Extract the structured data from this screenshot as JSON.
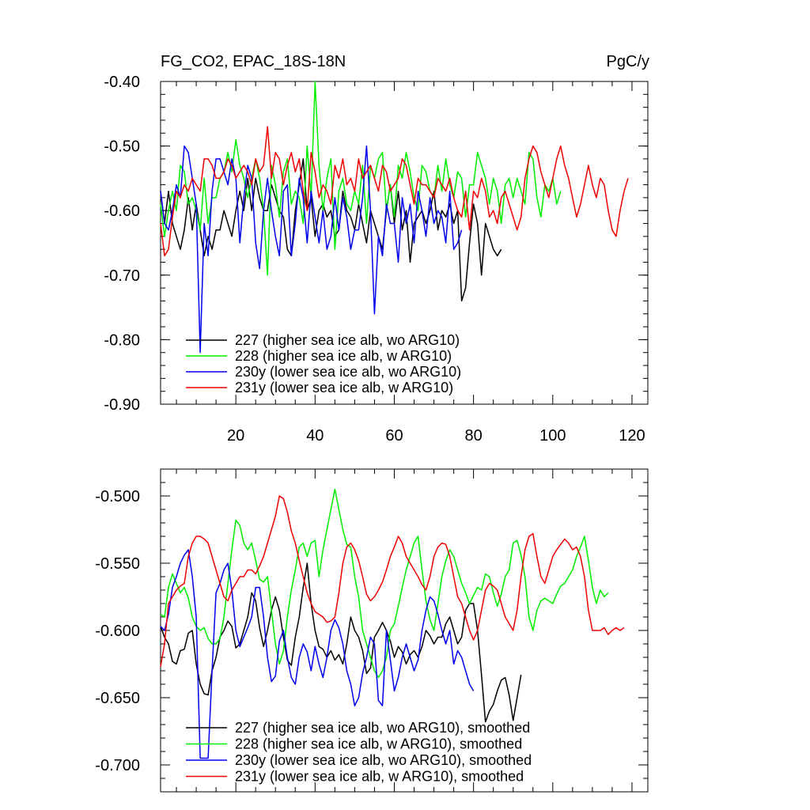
{
  "chart_data": [
    {
      "type": "line",
      "title_left": "FG_CO2, EPAC_18S-18N",
      "title_right": "PgC/y",
      "xlim": [
        1,
        124
      ],
      "ylim": [
        -0.9,
        -0.4
      ],
      "x_ticks": [
        20,
        40,
        60,
        80,
        100,
        120
      ],
      "y_ticks": [
        "-0.40",
        "-0.50",
        "-0.60",
        "-0.70",
        "-0.80",
        "-0.90"
      ],
      "y_tick_values": [
        -0.4,
        -0.5,
        -0.6,
        -0.7,
        -0.8,
        -0.9
      ],
      "grid": false,
      "legend_position": "bottom-left",
      "series": [
        {
          "name": "227 (higher sea ice alb, wo ARG10)",
          "color": "#000000",
          "values": [
            -0.57,
            -0.62,
            -0.57,
            -0.62,
            -0.64,
            -0.66,
            -0.63,
            -0.58,
            -0.63,
            -0.59,
            -0.63,
            -0.67,
            -0.64,
            -0.66,
            -0.63,
            -0.63,
            -0.6,
            -0.62,
            -0.64,
            -0.6,
            -0.57,
            -0.6,
            -0.55,
            -0.6,
            -0.55,
            -0.58,
            -0.6,
            -0.6,
            -0.56,
            -0.58,
            -0.6,
            -0.61,
            -0.66,
            -0.67,
            -0.6,
            -0.56,
            -0.52,
            -0.6,
            -0.58,
            -0.64,
            -0.6,
            -0.59,
            -0.61,
            -0.6,
            -0.64,
            -0.63,
            -0.57,
            -0.6,
            -0.61,
            -0.63,
            -0.59,
            -0.62,
            -0.65,
            -0.6,
            -0.62,
            -0.64,
            -0.66,
            -0.6,
            -0.56,
            -0.62,
            -0.57,
            -0.63,
            -0.6,
            -0.68,
            -0.62,
            -0.61,
            -0.6,
            -0.62,
            -0.6,
            -0.57,
            -0.63,
            -0.6,
            -0.61,
            -0.59,
            -0.62,
            -0.6,
            -0.74,
            -0.72,
            -0.65,
            -0.59,
            -0.62,
            -0.7,
            -0.62,
            -0.64,
            -0.66,
            -0.67,
            -0.66
          ]
        },
        {
          "name": "228 (higher sea ice alb, w ARG10)",
          "color": "#00ee00",
          "values": [
            -0.59,
            -0.64,
            -0.6,
            -0.57,
            -0.6,
            -0.53,
            -0.54,
            -0.59,
            -0.58,
            -0.6,
            -0.63,
            -0.55,
            -0.62,
            -0.58,
            -0.58,
            -0.55,
            -0.54,
            -0.51,
            -0.54,
            -0.49,
            -0.53,
            -0.55,
            -0.58,
            -0.55,
            -0.52,
            -0.55,
            -0.6,
            -0.7,
            -0.53,
            -0.56,
            -0.61,
            -0.54,
            -0.52,
            -0.59,
            -0.57,
            -0.58,
            -0.62,
            -0.5,
            -0.58,
            -0.4,
            -0.53,
            -0.6,
            -0.55,
            -0.52,
            -0.66,
            -0.57,
            -0.55,
            -0.59,
            -0.6,
            -0.57,
            -0.59,
            -0.53,
            -0.62,
            -0.53,
            -0.55,
            -0.52,
            -0.51,
            -0.6,
            -0.56,
            -0.61,
            -0.53,
            -0.55,
            -0.51,
            -0.54,
            -0.58,
            -0.6,
            -0.53,
            -0.54,
            -0.57,
            -0.58,
            -0.53,
            -0.57,
            -0.52,
            -0.56,
            -0.58,
            -0.54,
            -0.55,
            -0.61,
            -0.56,
            -0.56,
            -0.51,
            -0.53,
            -0.55,
            -0.59,
            -0.55,
            -0.57,
            -0.62,
            -0.56,
            -0.55,
            -0.58,
            -0.55,
            -0.57,
            -0.59,
            -0.51,
            -0.52,
            -0.58,
            -0.61,
            -0.56,
            -0.57,
            -0.55,
            -0.59,
            -0.57
          ]
        },
        {
          "name": "230y (lower sea ice alb, wo ARG10)",
          "color": "#0000ee",
          "values": [
            -0.57,
            -0.62,
            -0.63,
            -0.6,
            -0.56,
            -0.58,
            -0.5,
            -0.51,
            -0.55,
            -0.59,
            -0.82,
            -0.62,
            -0.67,
            -0.57,
            -0.52,
            -0.52,
            -0.54,
            -0.56,
            -0.52,
            -0.55,
            -0.65,
            -0.58,
            -0.53,
            -0.55,
            -0.65,
            -0.69,
            -0.6,
            -0.55,
            -0.6,
            -0.64,
            -0.67,
            -0.57,
            -0.56,
            -0.67,
            -0.62,
            -0.55,
            -0.58,
            -0.65,
            -0.57,
            -0.61,
            -0.65,
            -0.6,
            -0.66,
            -0.64,
            -0.58,
            -0.63,
            -0.58,
            -0.61,
            -0.66,
            -0.63,
            -0.63,
            -0.58,
            -0.5,
            -0.6,
            -0.76,
            -0.64,
            -0.67,
            -0.59,
            -0.62,
            -0.62,
            -0.68,
            -0.58,
            -0.62,
            -0.59,
            -0.65,
            -0.57,
            -0.6,
            -0.64,
            -0.58,
            -0.62,
            -0.6,
            -0.61,
            -0.65,
            -0.57,
            -0.66,
            -0.65,
            -0.63
          ]
        },
        {
          "name": "231y (lower sea ice alb, w ARG10)",
          "color": "#ee0000",
          "values": [
            -0.62,
            -0.67,
            -0.66,
            -0.61,
            -0.57,
            -0.58,
            -0.56,
            -0.57,
            -0.55,
            -0.56,
            -0.57,
            -0.52,
            -0.52,
            -0.53,
            -0.55,
            -0.55,
            -0.54,
            -0.52,
            -0.53,
            -0.55,
            -0.54,
            -0.53,
            -0.54,
            -0.56,
            -0.52,
            -0.54,
            -0.53,
            -0.47,
            -0.55,
            -0.51,
            -0.52,
            -0.56,
            -0.53,
            -0.51,
            -0.54,
            -0.52,
            -0.57,
            -0.6,
            -0.51,
            -0.54,
            -0.58,
            -0.56,
            -0.57,
            -0.59,
            -0.53,
            -0.55,
            -0.52,
            -0.56,
            -0.55,
            -0.57,
            -0.52,
            -0.55,
            -0.54,
            -0.53,
            -0.55,
            -0.57,
            -0.53,
            -0.54,
            -0.57,
            -0.56,
            -0.55,
            -0.52,
            -0.53,
            -0.56,
            -0.59,
            -0.55,
            -0.56,
            -0.56,
            -0.57,
            -0.58,
            -0.55,
            -0.56,
            -0.57,
            -0.55,
            -0.58,
            -0.6,
            -0.61,
            -0.57,
            -0.63,
            -0.57,
            -0.58,
            -0.55,
            -0.57,
            -0.61,
            -0.6,
            -0.62,
            -0.58,
            -0.57,
            -0.59,
            -0.61,
            -0.63,
            -0.61,
            -0.55,
            -0.52,
            -0.5,
            -0.51,
            -0.54,
            -0.56,
            -0.58,
            -0.55,
            -0.52,
            -0.5,
            -0.53,
            -0.55,
            -0.58,
            -0.61,
            -0.59,
            -0.56,
            -0.53,
            -0.56,
            -0.58,
            -0.55,
            -0.56,
            -0.6,
            -0.63,
            -0.64,
            -0.6,
            -0.57,
            -0.55
          ]
        }
      ]
    },
    {
      "type": "line",
      "xlim": [
        1,
        124
      ],
      "ylim": [
        -0.72,
        -0.48
      ],
      "y_ticks": [
        "-0.500",
        "-0.550",
        "-0.600",
        "-0.650",
        "-0.700"
      ],
      "y_tick_values": [
        -0.5,
        -0.55,
        -0.6,
        -0.65,
        -0.7
      ],
      "x_tick_values": [
        20,
        40,
        60,
        80,
        100,
        120
      ],
      "grid": false,
      "legend_position": "bottom-left",
      "series": [
        {
          "name": "227 (higher sea ice alb, wo ARG10), smoothed",
          "color": "#000000",
          "values": [
            -0.597,
            -0.605,
            -0.61,
            -0.623,
            -0.625,
            -0.615,
            -0.614,
            -0.602,
            -0.6,
            -0.625,
            -0.64,
            -0.647,
            -0.648,
            -0.63,
            -0.62,
            -0.605,
            -0.6,
            -0.593,
            -0.597,
            -0.613,
            -0.61,
            -0.6,
            -0.59,
            -0.572,
            -0.578,
            -0.598,
            -0.612,
            -0.6,
            -0.585,
            -0.575,
            -0.585,
            -0.605,
            -0.622,
            -0.626,
            -0.605,
            -0.59,
            -0.568,
            -0.55,
            -0.58,
            -0.6,
            -0.612,
            -0.614,
            -0.62,
            -0.615,
            -0.622,
            -0.618,
            -0.625,
            -0.61,
            -0.59,
            -0.6,
            -0.605,
            -0.615,
            -0.632,
            -0.628,
            -0.605,
            -0.6,
            -0.594,
            -0.6,
            -0.608,
            -0.62,
            -0.612,
            -0.616,
            -0.625,
            -0.618,
            -0.615,
            -0.62,
            -0.612,
            -0.6,
            -0.604,
            -0.61,
            -0.605,
            -0.605,
            -0.595,
            -0.59,
            -0.6,
            -0.61,
            -0.605,
            -0.585,
            -0.58,
            -0.58,
            -0.6,
            -0.633,
            -0.668,
            -0.66,
            -0.655,
            -0.645,
            -0.637,
            -0.635,
            -0.648,
            -0.667,
            -0.65,
            -0.633
          ]
        },
        {
          "name": "228 (higher sea ice alb, w ARG10), smoothed",
          "color": "#00ee00",
          "values": [
            -0.588,
            -0.59,
            -0.568,
            -0.558,
            -0.565,
            -0.572,
            -0.568,
            -0.576,
            -0.59,
            -0.597,
            -0.6,
            -0.598,
            -0.606,
            -0.61,
            -0.61,
            -0.606,
            -0.59,
            -0.565,
            -0.54,
            -0.518,
            -0.522,
            -0.535,
            -0.54,
            -0.535,
            -0.548,
            -0.562,
            -0.564,
            -0.56,
            -0.585,
            -0.61,
            -0.625,
            -0.615,
            -0.59,
            -0.57,
            -0.555,
            -0.538,
            -0.535,
            -0.545,
            -0.535,
            -0.533,
            -0.56,
            -0.54,
            -0.525,
            -0.51,
            -0.495,
            -0.51,
            -0.525,
            -0.536,
            -0.538,
            -0.56,
            -0.575,
            -0.6,
            -0.61,
            -0.62,
            -0.63,
            -0.635,
            -0.63,
            -0.62,
            -0.6,
            -0.595,
            -0.582,
            -0.568,
            -0.555,
            -0.545,
            -0.535,
            -0.53,
            -0.555,
            -0.578,
            -0.592,
            -0.6,
            -0.58,
            -0.56,
            -0.548,
            -0.54,
            -0.545,
            -0.555,
            -0.565,
            -0.572,
            -0.58,
            -0.574,
            -0.568,
            -0.57,
            -0.558,
            -0.56,
            -0.572,
            -0.582,
            -0.573,
            -0.56,
            -0.555,
            -0.535,
            -0.533,
            -0.544,
            -0.56,
            -0.59,
            -0.6,
            -0.585,
            -0.578,
            -0.576,
            -0.578,
            -0.58,
            -0.573,
            -0.567,
            -0.565,
            -0.56,
            -0.555,
            -0.545,
            -0.538,
            -0.53,
            -0.548,
            -0.568,
            -0.58,
            -0.57,
            -0.575,
            -0.572
          ]
        },
        {
          "name": "230y (lower sea ice alb, wo ARG10), smoothed",
          "color": "#0000ee",
          "values": [
            -0.597,
            -0.6,
            -0.588,
            -0.568,
            -0.56,
            -0.55,
            -0.544,
            -0.54,
            -0.56,
            -0.59,
            -0.695,
            -0.695,
            -0.695,
            -0.63,
            -0.572,
            -0.565,
            -0.555,
            -0.55,
            -0.57,
            -0.6,
            -0.612,
            -0.605,
            -0.598,
            -0.59,
            -0.568,
            -0.568,
            -0.59,
            -0.62,
            -0.638,
            -0.634,
            -0.608,
            -0.6,
            -0.62,
            -0.635,
            -0.64,
            -0.62,
            -0.61,
            -0.616,
            -0.63,
            -0.612,
            -0.625,
            -0.635,
            -0.62,
            -0.6,
            -0.592,
            -0.598,
            -0.61,
            -0.63,
            -0.64,
            -0.656,
            -0.65,
            -0.632,
            -0.62,
            -0.605,
            -0.61,
            -0.652,
            -0.656,
            -0.6,
            -0.622,
            -0.645,
            -0.635,
            -0.62,
            -0.61,
            -0.62,
            -0.63,
            -0.622,
            -0.6,
            -0.585,
            -0.575,
            -0.578,
            -0.588,
            -0.6,
            -0.61,
            -0.6,
            -0.625,
            -0.615,
            -0.62,
            -0.63,
            -0.64,
            -0.645
          ]
        },
        {
          "name": "231y (lower sea ice alb, w ARG10), smoothed",
          "color": "#ee0000",
          "values": [
            -0.627,
            -0.61,
            -0.58,
            -0.575,
            -0.57,
            -0.567,
            -0.565,
            -0.545,
            -0.535,
            -0.53,
            -0.53,
            -0.532,
            -0.535,
            -0.545,
            -0.555,
            -0.565,
            -0.575,
            -0.578,
            -0.57,
            -0.565,
            -0.56,
            -0.56,
            -0.555,
            -0.555,
            -0.558,
            -0.552,
            -0.545,
            -0.535,
            -0.525,
            -0.515,
            -0.5,
            -0.502,
            -0.512,
            -0.526,
            -0.535,
            -0.548,
            -0.56,
            -0.572,
            -0.58,
            -0.586,
            -0.588,
            -0.59,
            -0.594,
            -0.593,
            -0.59,
            -0.572,
            -0.55,
            -0.538,
            -0.535,
            -0.54,
            -0.548,
            -0.56,
            -0.573,
            -0.578,
            -0.575,
            -0.57,
            -0.564,
            -0.555,
            -0.545,
            -0.538,
            -0.53,
            -0.535,
            -0.545,
            -0.55,
            -0.555,
            -0.56,
            -0.566,
            -0.57,
            -0.56,
            -0.545,
            -0.538,
            -0.535,
            -0.536,
            -0.545,
            -0.56,
            -0.575,
            -0.58,
            -0.59,
            -0.6,
            -0.607,
            -0.6,
            -0.585,
            -0.57,
            -0.565,
            -0.567,
            -0.57,
            -0.58,
            -0.59,
            -0.595,
            -0.6,
            -0.585,
            -0.56,
            -0.54,
            -0.53,
            -0.528,
            -0.545,
            -0.56,
            -0.565,
            -0.555,
            -0.545,
            -0.54,
            -0.536,
            -0.532,
            -0.535,
            -0.54,
            -0.538,
            -0.545,
            -0.56,
            -0.585,
            -0.6,
            -0.6,
            -0.6,
            -0.598,
            -0.603,
            -0.6,
            -0.598,
            -0.6,
            -0.598
          ]
        }
      ]
    }
  ]
}
